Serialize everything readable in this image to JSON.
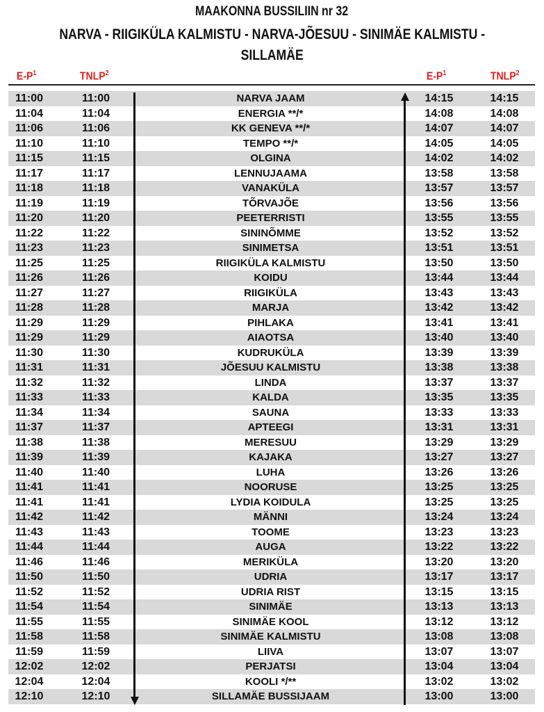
{
  "title": {
    "line1": "MAAKONNA BUSSILIIN nr 32",
    "line2": "NARVA - RIIGIKÜLA KALMISTU - NARVA-JÕESUU - SINIMÄE  KALMISTU -",
    "line3": "SILLAMÄE"
  },
  "headers": {
    "ep": "E-P",
    "ep_sup": "1",
    "tnlp": "TNLP",
    "tnlp_sup": "2"
  },
  "colors": {
    "header_red": "#e0201c",
    "row_shade": "#d9d9d9"
  },
  "rows": [
    [
      "11:00",
      "11:00",
      "NARVA JAAM",
      "14:15",
      "14:15"
    ],
    [
      "11:04",
      "11:04",
      "ENERGIA **/*",
      "14:08",
      "14:08"
    ],
    [
      "11:06",
      "11:06",
      "KK GENEVA **/*",
      "14:07",
      "14:07"
    ],
    [
      "11:10",
      "11:10",
      "TEMPO **/*",
      "14:05",
      "14:05"
    ],
    [
      "11:15",
      "11:15",
      "OLGINA",
      "14:02",
      "14:02"
    ],
    [
      "11:17",
      "11:17",
      "LENNUJAAMA",
      "13:58",
      "13:58"
    ],
    [
      "11:18",
      "11:18",
      "VANAKÜLA",
      "13:57",
      "13:57"
    ],
    [
      "11:19",
      "11:19",
      "TÕRVAJÕE",
      "13:56",
      "13:56"
    ],
    [
      "11:20",
      "11:20",
      "PEETERRISTI",
      "13:55",
      "13:55"
    ],
    [
      "11:22",
      "11:22",
      "SININÕMME",
      "13:52",
      "13:52"
    ],
    [
      "11:23",
      "11:23",
      "SINIMETSA",
      "13:51",
      "13:51"
    ],
    [
      "11:25",
      "11:25",
      "RIIGIKÜLA KALMISTU",
      "13:50",
      "13:50"
    ],
    [
      "11:26",
      "11:26",
      "KOIDU",
      "13:44",
      "13:44"
    ],
    [
      "11:27",
      "11:27",
      "RIIGIKÜLA",
      "13:43",
      "13:43"
    ],
    [
      "11:28",
      "11:28",
      "MARJA",
      "13:42",
      "13:42"
    ],
    [
      "11:29",
      "11:29",
      "PIHLAKA",
      "13:41",
      "13:41"
    ],
    [
      "11:29",
      "11:29",
      "AIAOTSA",
      "13:40",
      "13:40"
    ],
    [
      "11:30",
      "11:30",
      "KUDRUKÜLA",
      "13:39",
      "13:39"
    ],
    [
      "11:31",
      "11:31",
      "JÕESUU KALMISTU",
      "13:38",
      "13:38"
    ],
    [
      "11:32",
      "11:32",
      "LINDA",
      "13:37",
      "13:37"
    ],
    [
      "11:33",
      "11:33",
      "KALDA",
      "13:35",
      "13:35"
    ],
    [
      "11:34",
      "11:34",
      "SAUNA",
      "13:33",
      "13:33"
    ],
    [
      "11:37",
      "11:37",
      "APTEEGI",
      "13:31",
      "13:31"
    ],
    [
      "11:38",
      "11:38",
      "MERESUU",
      "13:29",
      "13:29"
    ],
    [
      "11:39",
      "11:39",
      "KAJAKA",
      "13:27",
      "13:27"
    ],
    [
      "11:40",
      "11:40",
      "LUHA",
      "13:26",
      "13:26"
    ],
    [
      "11:41",
      "11:41",
      "NOORUSE",
      "13:25",
      "13:25"
    ],
    [
      "11:41",
      "11:41",
      "LYDIA KOIDULA",
      "13:25",
      "13:25"
    ],
    [
      "11:42",
      "11:42",
      "MÄNNI",
      "13:24",
      "13:24"
    ],
    [
      "11:43",
      "11:43",
      "TOOME",
      "13:23",
      "13:23"
    ],
    [
      "11:44",
      "11:44",
      "AUGA",
      "13:22",
      "13:22"
    ],
    [
      "11:46",
      "11:46",
      "MERIKÜLA",
      "13:20",
      "13:20"
    ],
    [
      "11:50",
      "11:50",
      "UDRIA",
      "13:17",
      "13:17"
    ],
    [
      "11:52",
      "11:52",
      "UDRIA RIST",
      "13:15",
      "13:15"
    ],
    [
      "11:54",
      "11:54",
      "SINIMÄE",
      "13:13",
      "13:13"
    ],
    [
      "11:55",
      "11:55",
      "SINIMÄE KOOL",
      "13:12",
      "13:12"
    ],
    [
      "11:58",
      "11:58",
      "SINIMÄE KALMISTU",
      "13:08",
      "13:08"
    ],
    [
      "11:59",
      "11:59",
      "LIIVA",
      "13:07",
      "13:07"
    ],
    [
      "12:02",
      "12:02",
      "PERJATSI",
      "13:04",
      "13:04"
    ],
    [
      "12:04",
      "12:04",
      "KOOLI */**",
      "13:02",
      "13:02"
    ],
    [
      "12:10",
      "12:10",
      "SILLAMÄE BUSSIJAAM",
      "13:00",
      "13:00"
    ]
  ]
}
